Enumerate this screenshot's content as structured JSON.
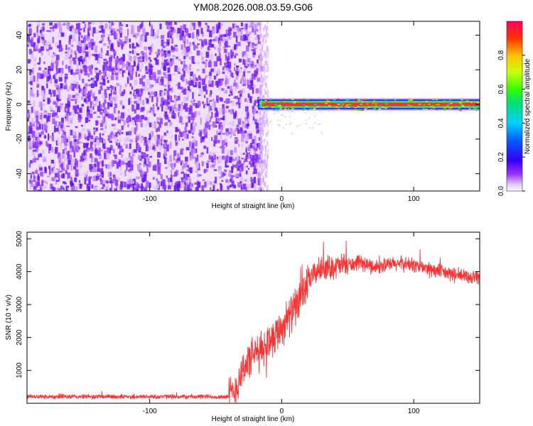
{
  "title": "YM08.2026.008.03.59.G06",
  "chart_data": [
    {
      "type": "heatmap",
      "xlabel": "Height of straight line (km)",
      "ylabel": "Frequency (Hz)",
      "xlim": [
        -193,
        150
      ],
      "ylim": [
        -50,
        48
      ],
      "xticks": [
        -100,
        0,
        100
      ],
      "yticks": [
        -40,
        -20,
        0,
        20,
        40
      ],
      "colorbar": {
        "label": "Normalized spectral amplitude",
        "range": [
          0,
          1
        ],
        "ticks": [
          0.0,
          0.2,
          0.4,
          0.6,
          0.8
        ],
        "colors": [
          "#ffffff",
          "#d9b3ff",
          "#8f2cff",
          "#3300ff",
          "#0044ff",
          "#00c8ff",
          "#00e070",
          "#33ff00",
          "#ccff00",
          "#ffcc00",
          "#ff3300",
          "#ff0066"
        ]
      },
      "regions": [
        {
          "name": "broadband noise",
          "x": [
            -193,
            -15
          ],
          "y": [
            -50,
            48
          ],
          "amplitude": 0.15
        },
        {
          "name": "signal band",
          "x": [
            -18,
            150
          ],
          "y": [
            -2.5,
            2.5
          ],
          "amplitude": 0.8
        },
        {
          "name": "signal core",
          "x": [
            -15,
            150
          ],
          "y": [
            -0.8,
            0.8
          ],
          "amplitude": 1.0
        }
      ],
      "grid": false
    },
    {
      "type": "line",
      "xlabel": "Height of straight line (km)",
      "ylabel": "SNR (10 * v/v)",
      "xlim": [
        -193,
        150
      ],
      "ylim": [
        0,
        5200
      ],
      "xticks": [
        -100,
        0,
        100
      ],
      "yticks": [
        1000,
        2000,
        3000,
        4000,
        5000
      ],
      "color": "#ff3030",
      "series": [
        {
          "x": [
            -193,
            -150,
            -100,
            -60,
            -40,
            -35,
            -30,
            -25,
            -20,
            -15,
            -10,
            -5,
            0,
            5,
            10,
            15,
            20,
            25,
            30,
            40,
            50,
            60,
            70,
            80,
            90,
            100,
            110,
            120,
            130,
            140,
            150
          ],
          "values": [
            200,
            200,
            200,
            200,
            200,
            400,
            1000,
            1300,
            1500,
            1600,
            1900,
            2100,
            2300,
            2600,
            2900,
            3200,
            3700,
            3950,
            4100,
            4150,
            4200,
            4250,
            4150,
            4200,
            4250,
            4200,
            4100,
            4000,
            3900,
            3850,
            3850
          ]
        }
      ],
      "grid": false
    }
  ]
}
